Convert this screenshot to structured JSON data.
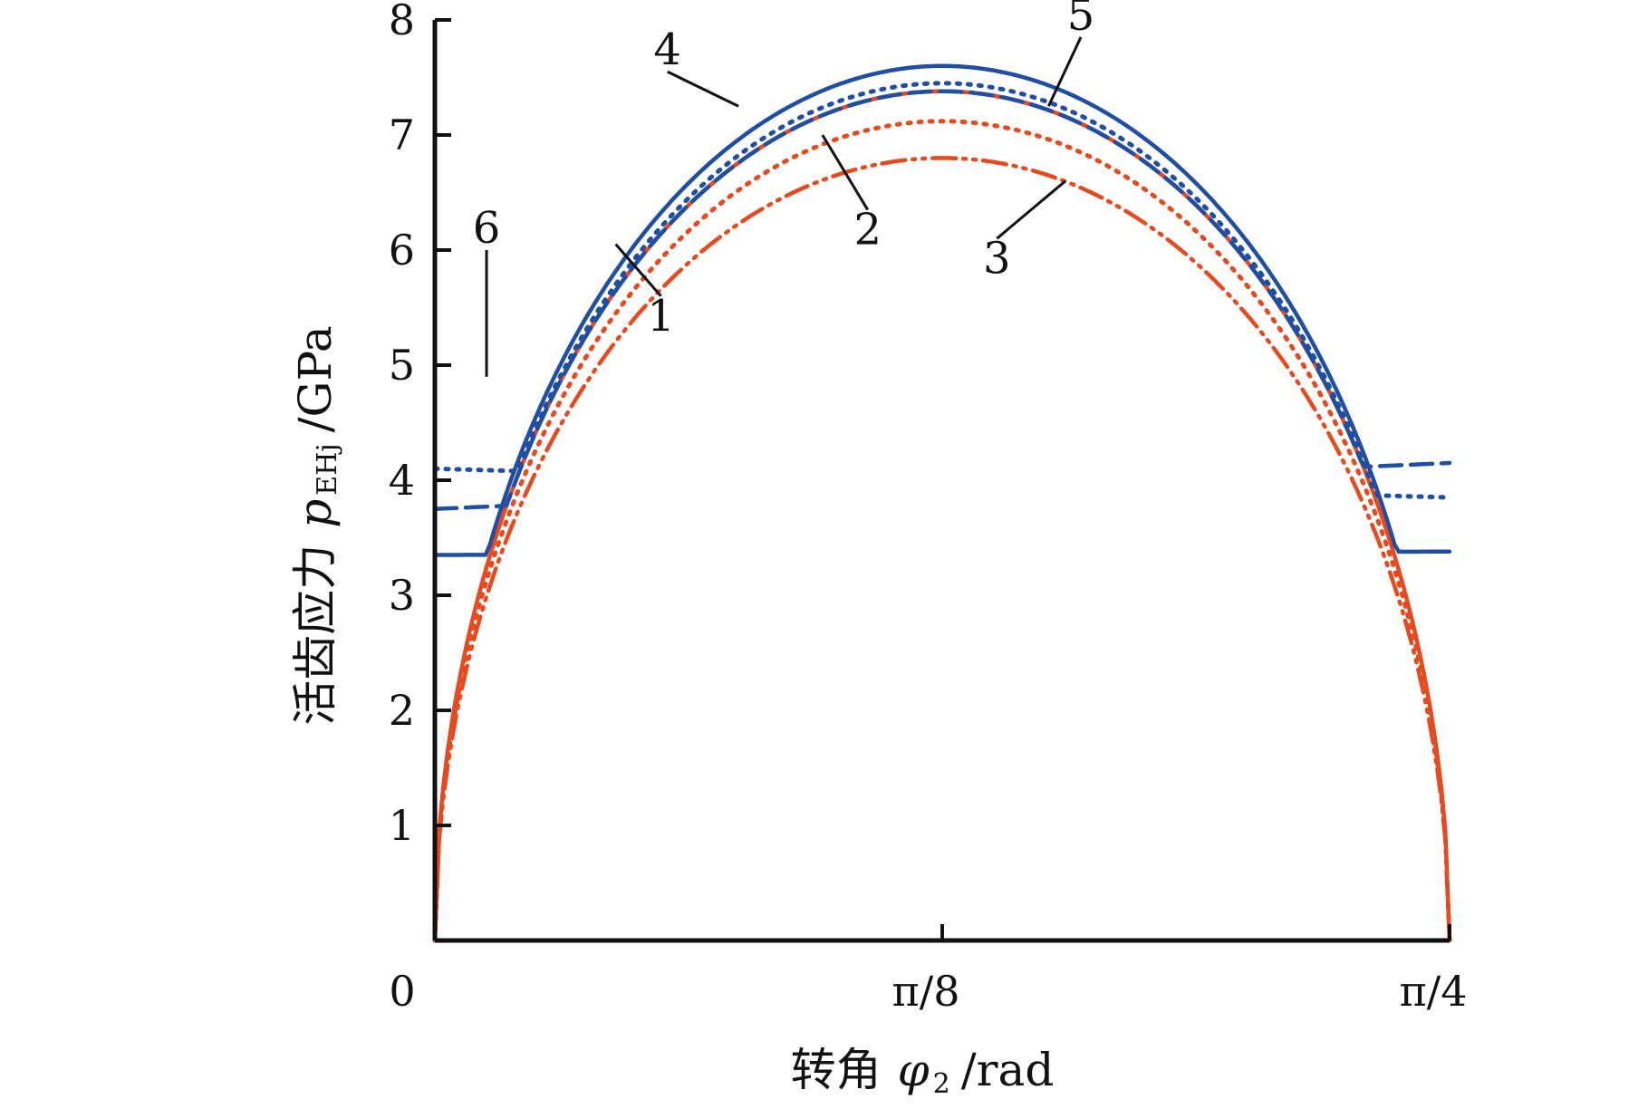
{
  "chart_data": {
    "type": "line",
    "title": "",
    "xlabel": {
      "prefix": "转角",
      "symbol": "φ",
      "subscript": "2",
      "unit": "/rad"
    },
    "ylabel": {
      "prefix": "活齿应力",
      "symbol": "p",
      "subscript": "EHj",
      "unit": "/GPa"
    },
    "x_ticks": [
      {
        "value": 0,
        "label": "0"
      },
      {
        "value": 0.392699,
        "label": "π/8"
      },
      {
        "value": 0.785398,
        "label": "π/4"
      }
    ],
    "y_ticks": [
      1,
      2,
      3,
      4,
      5,
      6,
      7,
      8
    ],
    "xlim": [
      0,
      0.785398
    ],
    "ylim": [
      0,
      8
    ],
    "grid": false,
    "series": [
      {
        "label": "1",
        "color": "#e64a1e",
        "style": "solid",
        "peak": 7.38,
        "x_start": 0.0,
        "x_end": 0.785398,
        "y_start": 0.0,
        "y_end": 0.0
      },
      {
        "label": "2",
        "color": "#e64a1e",
        "style": "dotted",
        "peak": 7.12,
        "x_start": 0.0,
        "x_end": 0.785398,
        "y_start": 0.0,
        "y_end": 0.0
      },
      {
        "label": "3",
        "color": "#e64a1e",
        "style": "dashdot",
        "peak": 6.8,
        "x_start": 0.0,
        "x_end": 0.785398,
        "y_start": 0.0,
        "y_end": 0.0
      },
      {
        "label": "4",
        "color": "#1f4ea3",
        "style": "solid",
        "peak": 7.6,
        "x_start": 0.0,
        "x_end": 0.785398,
        "y_start": 3.35,
        "y_end": 3.38
      },
      {
        "label": "5",
        "color": "#1f4ea3",
        "style": "dashed",
        "peak": 7.38,
        "x_start": 0.0,
        "x_end": 0.785398,
        "y_start": 3.75,
        "y_end": 4.15
      },
      {
        "label": "6",
        "color": "#1f4ea3",
        "style": "dotted",
        "peak": 7.45,
        "x_start": 0.0,
        "x_end": 0.785398,
        "y_start": 4.1,
        "y_end": 3.85
      }
    ],
    "annotations": [
      {
        "text": "1",
        "x": 0.175,
        "y": 5.6,
        "target_x": 0.14,
        "target_y": 6.05
      },
      {
        "text": "2",
        "x": 0.335,
        "y": 6.35,
        "target_x": 0.3,
        "target_y": 7.0
      },
      {
        "text": "3",
        "x": 0.435,
        "y": 6.1,
        "target_x": 0.488,
        "target_y": 6.6
      },
      {
        "text": "4",
        "x": 0.18,
        "y": 7.55,
        "target_x": 0.235,
        "target_y": 7.25
      },
      {
        "text": "5",
        "x": 0.5,
        "y": 7.85,
        "target_x": 0.475,
        "target_y": 7.25
      },
      {
        "text": "6",
        "x": 0.04,
        "y": 6.0,
        "target_x": 0.04,
        "target_y": 4.9
      }
    ]
  }
}
